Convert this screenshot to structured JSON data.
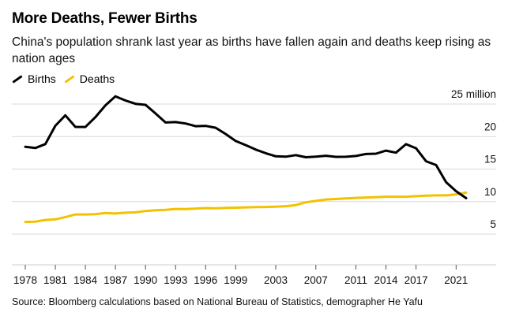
{
  "title": "More Deaths, Fewer Births",
  "subtitle": "China's population shrank last year as births have fallen again and deaths keep rising as nation ages",
  "source": "Source: Bloomberg calculations based on National Bureau of Statistics, demographer He Yafu",
  "chart_data": {
    "type": "line",
    "title": "More Deaths, Fewer Births",
    "subtitle": "China's population shrank last year as births have fallen again and deaths keep rising as nation ages",
    "xlabel": "",
    "ylabel": "",
    "unit": "million",
    "ylim": [
      0,
      25
    ],
    "xlim": [
      1978,
      2022
    ],
    "grid": true,
    "legend_position": "top-left",
    "y_ticks": [
      5,
      10,
      15,
      20,
      25
    ],
    "y_tick_labels": [
      "5",
      "10",
      "15",
      "20",
      "25 million"
    ],
    "x_ticks": [
      1978,
      1981,
      1984,
      1987,
      1990,
      1993,
      1996,
      1999,
      2003,
      2007,
      2011,
      2014,
      2017,
      2021
    ],
    "x_tick_labels": [
      "1978",
      "1981",
      "1984",
      "1987",
      "1990",
      "1993",
      "1996",
      "1999",
      "2003",
      "2007",
      "2011",
      "2014",
      "2017",
      "2021"
    ],
    "series": [
      {
        "name": "Births",
        "color": "#000000",
        "x": [
          1978,
          1979,
          1980,
          1981,
          1982,
          1983,
          1984,
          1985,
          1986,
          1987,
          1988,
          1989,
          1990,
          1991,
          1992,
          1993,
          1994,
          1995,
          1996,
          1997,
          1998,
          1999,
          2000,
          2001,
          2002,
          2003,
          2004,
          2005,
          2006,
          2007,
          2008,
          2009,
          2010,
          2011,
          2012,
          2013,
          2014,
          2015,
          2016,
          2017,
          2018,
          2019,
          2020,
          2021,
          2022
        ],
        "values": [
          17.45,
          17.27,
          17.87,
          20.69,
          22.3,
          20.52,
          20.5,
          22.02,
          23.84,
          25.22,
          24.57,
          24.07,
          23.91,
          22.58,
          21.19,
          21.26,
          21.04,
          20.63,
          20.67,
          20.38,
          19.42,
          18.34,
          17.71,
          17.02,
          16.47,
          15.99,
          15.93,
          16.17,
          15.85,
          15.94,
          16.08,
          15.91,
          15.92,
          16.04,
          16.35,
          16.4,
          16.87,
          16.55,
          17.86,
          17.23,
          15.23,
          14.65,
          12.02,
          10.62,
          9.56
        ]
      },
      {
        "name": "Deaths",
        "color": "#f2c200",
        "x": [
          1978,
          1979,
          1980,
          1981,
          1982,
          1983,
          1984,
          1985,
          1986,
          1987,
          1988,
          1989,
          1990,
          1991,
          1992,
          1993,
          1994,
          1995,
          1996,
          1997,
          1998,
          1999,
          2000,
          2001,
          2002,
          2003,
          2004,
          2005,
          2006,
          2007,
          2008,
          2009,
          2010,
          2011,
          2012,
          2013,
          2014,
          2015,
          2016,
          2017,
          2018,
          2019,
          2020,
          2021,
          2022
        ],
        "values": [
          5.9,
          5.95,
          6.2,
          6.3,
          6.65,
          7.05,
          7.05,
          7.1,
          7.28,
          7.2,
          7.32,
          7.38,
          7.58,
          7.7,
          7.75,
          7.9,
          7.89,
          7.96,
          8.03,
          8.0,
          8.07,
          8.09,
          8.14,
          8.18,
          8.2,
          8.25,
          8.32,
          8.49,
          8.92,
          9.13,
          9.35,
          9.43,
          9.51,
          9.6,
          9.66,
          9.72,
          9.77,
          9.77,
          9.77,
          9.86,
          9.93,
          9.98,
          9.98,
          10.14,
          10.41
        ]
      }
    ]
  }
}
